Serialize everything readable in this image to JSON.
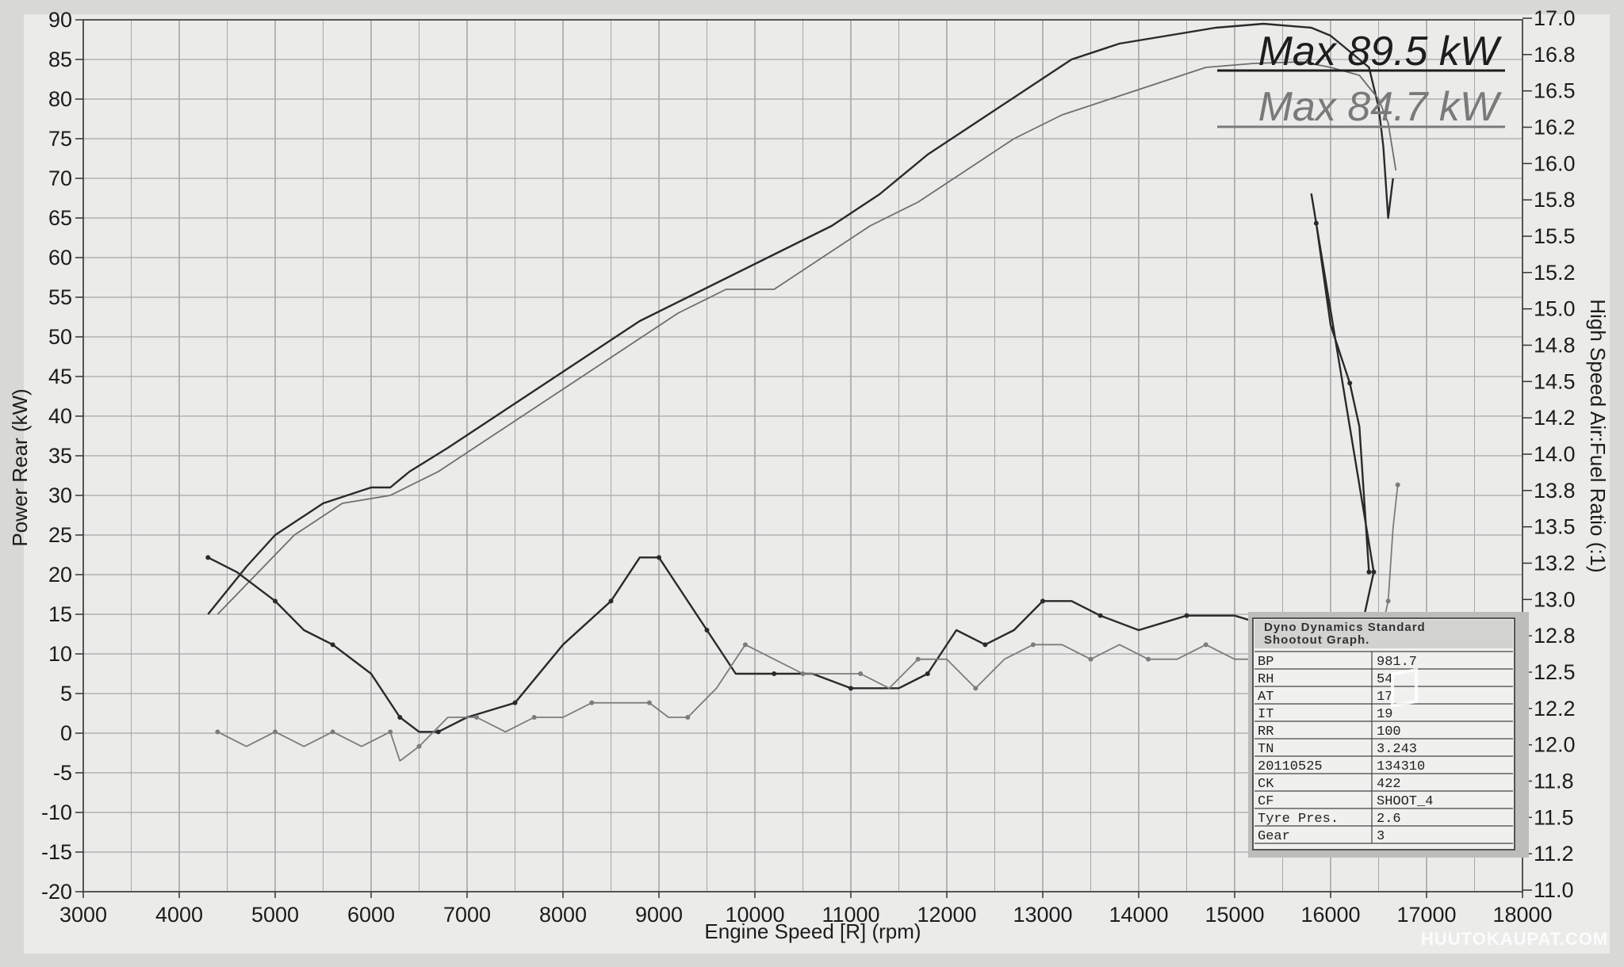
{
  "chart_data": {
    "type": "line",
    "xlabel": "Engine Speed [R] (rpm)",
    "ylabel_left": "Power Rear (kW)",
    "ylabel_right": "High Speed Air:Fuel Ratio (:1)",
    "xlim": [
      3000,
      18000
    ],
    "ylim_left": [
      -20,
      90
    ],
    "ylim_right": [
      11.0,
      17.0
    ],
    "x_ticks": [
      "3000",
      "4000",
      "5000",
      "6000",
      "7000",
      "8000",
      "9000",
      "10000",
      "11000",
      "12000",
      "13000",
      "14000",
      "15000",
      "16000",
      "17000",
      "18000"
    ],
    "y_left_ticks": [
      "90",
      "85",
      "80",
      "75",
      "70",
      "65",
      "60",
      "55",
      "50",
      "45",
      "40",
      "35",
      "30",
      "25",
      "20",
      "15",
      "10",
      "5",
      "0",
      "-5",
      "-10",
      "-15",
      "-20"
    ],
    "y_right_ticks": [
      "17.0",
      "16.8",
      "16.5",
      "16.2",
      "16.0",
      "15.8",
      "15.5",
      "15.2",
      "15.0",
      "14.8",
      "14.5",
      "14.2",
      "14.0",
      "13.8",
      "13.5",
      "13.2",
      "13.0",
      "12.8",
      "12.5",
      "12.2",
      "12.0",
      "11.8",
      "11.5",
      "11.2",
      "11.0"
    ],
    "grid": true,
    "max_labels": [
      "Max 89.5 kW",
      "Max 84.7 kW"
    ],
    "series": [
      {
        "axis": "left",
        "color": "#2a2a2a",
        "x": [
          4300,
          4700,
          5000,
          5500,
          6000,
          6200,
          6400,
          6800,
          7300,
          7800,
          8300,
          8800,
          9300,
          9800,
          10300,
          10800,
          11300,
          11800,
          12300,
          12800,
          13300,
          13800,
          14300,
          14800,
          15300,
          15800,
          16000,
          16200,
          16400,
          16500,
          16550,
          16600,
          16650
        ],
        "y": [
          15,
          21,
          25,
          29,
          31,
          31,
          33,
          36,
          40,
          44,
          48,
          52,
          55,
          58,
          61,
          64,
          68,
          73,
          77,
          81,
          85,
          87,
          88,
          89,
          89.5,
          89,
          88,
          86,
          84,
          79,
          74,
          65,
          70
        ]
      },
      {
        "axis": "left",
        "color": "#6e6e6e",
        "x": [
          4400,
          4800,
          5200,
          5700,
          6200,
          6700,
          7200,
          7700,
          8200,
          8700,
          9200,
          9700,
          10200,
          10700,
          11200,
          11700,
          12200,
          12700,
          13200,
          13700,
          14200,
          14700,
          15200,
          15700,
          16000,
          16300,
          16500,
          16600,
          16680
        ],
        "y": [
          15,
          20,
          25,
          29,
          30,
          33,
          37,
          41,
          45,
          49,
          53,
          56,
          56,
          60,
          64,
          67,
          71,
          75,
          78,
          80,
          82,
          84,
          84.5,
          84.7,
          84,
          83,
          80,
          77,
          71
        ]
      },
      {
        "axis": "right",
        "color": "#2a2a2a",
        "x": [
          4300,
          4600,
          5000,
          5300,
          5600,
          6000,
          6300,
          6500,
          6700,
          7000,
          7500,
          8000,
          8500,
          8800,
          9000,
          9200,
          9500,
          9800,
          10200,
          10600,
          11000,
          11500,
          11800,
          12100,
          12400,
          12700,
          13000,
          13300,
          13600,
          14000,
          14500,
          15000,
          15500,
          16000,
          16200,
          16350,
          16450,
          15800,
          15850,
          16000,
          16200,
          16300,
          16400
        ],
        "y": [
          13.3,
          13.2,
          13.0,
          12.8,
          12.7,
          12.5,
          12.2,
          12.1,
          12.1,
          12.2,
          12.3,
          12.7,
          13.0,
          13.3,
          13.3,
          13.1,
          12.8,
          12.5,
          12.5,
          12.5,
          12.4,
          12.4,
          12.5,
          12.8,
          12.7,
          12.8,
          13.0,
          13.0,
          12.9,
          12.8,
          12.9,
          12.9,
          12.8,
          12.8,
          12.8,
          12.9,
          13.2,
          15.8,
          15.6,
          14.9,
          14.5,
          14.2,
          13.2
        ]
      },
      {
        "axis": "right",
        "color": "#7c7c7c",
        "x": [
          4400,
          4700,
          5000,
          5300,
          5600,
          5900,
          6200,
          6300,
          6500,
          6800,
          7100,
          7400,
          7700,
          8000,
          8300,
          8600,
          8900,
          9100,
          9300,
          9600,
          9900,
          10200,
          10500,
          10800,
          11100,
          11400,
          11700,
          12000,
          12300,
          12600,
          12900,
          13200,
          13500,
          13800,
          14100,
          14400,
          14700,
          15000,
          15300,
          15600,
          15900,
          16100,
          16300,
          16500,
          16600,
          16650,
          16700
        ],
        "y": [
          12.1,
          12.0,
          12.1,
          12.0,
          12.1,
          12.0,
          12.1,
          11.9,
          12.0,
          12.2,
          12.2,
          12.1,
          12.2,
          12.2,
          12.3,
          12.3,
          12.3,
          12.2,
          12.2,
          12.4,
          12.7,
          12.6,
          12.5,
          12.5,
          12.5,
          12.4,
          12.6,
          12.6,
          12.4,
          12.6,
          12.7,
          12.7,
          12.6,
          12.7,
          12.6,
          12.6,
          12.7,
          12.6,
          12.6,
          12.6,
          12.6,
          12.6,
          12.6,
          12.7,
          13.0,
          13.5,
          13.8
        ]
      }
    ]
  },
  "info_table": {
    "title_line1": "Dyno Dynamics Standard",
    "title_line2": "Shootout Graph.",
    "rows": [
      {
        "label": "BP",
        "value": "981.7"
      },
      {
        "label": "RH",
        "value": "54"
      },
      {
        "label": "AT",
        "value": "17"
      },
      {
        "label": "IT",
        "value": "19"
      },
      {
        "label": "RR",
        "value": "100"
      },
      {
        "label": "TN",
        "value": "3.243"
      },
      {
        "label": "20110525",
        "value": "134310"
      },
      {
        "label": "CK",
        "value": "422"
      },
      {
        "label": "CF",
        "value": "SHOOT_4"
      },
      {
        "label": "Tyre Pres.",
        "value": "2.6"
      },
      {
        "label": "Gear",
        "value": "3"
      }
    ]
  },
  "watermark": {
    "text": "HUUTOKAUPAT.COM",
    "colors": {
      "fg": "#ffffff"
    }
  },
  "colors": {
    "paper": "#ececea",
    "grid": "#a7a7a7",
    "frame": "#9a9a9a",
    "ink_dark": "#2a2a2a",
    "ink_light": "#7a7a7a"
  }
}
